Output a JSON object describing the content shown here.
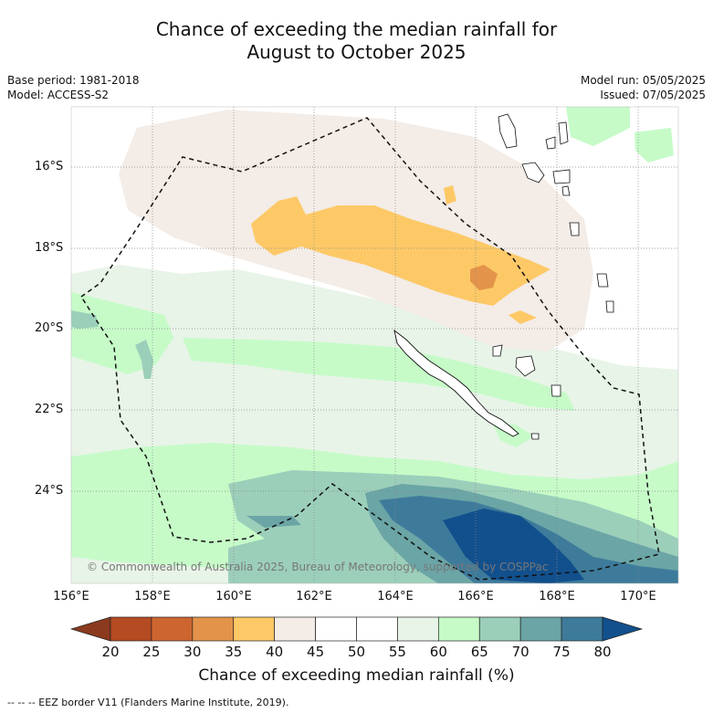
{
  "title_line1": "Chance of exceeding the median rainfall for",
  "title_line2": "August to October 2025",
  "meta_left": {
    "base_period": "Base period: 1981-2018",
    "model": "Model: ACCESS-S2"
  },
  "meta_right": {
    "model_run": "Model run: 05/05/2025",
    "issued": "Issued: 07/05/2025"
  },
  "lat_labels": [
    "16°S",
    "18°S",
    "20°S",
    "22°S",
    "24°S"
  ],
  "lon_labels": [
    "156°E",
    "158°E",
    "160°E",
    "162°E",
    "164°E",
    "166°E",
    "168°E",
    "170°E"
  ],
  "copyright": "© Commonwealth of Australia 2025, Bureau of Meteorology, supported by COSPPac",
  "colorbar": {
    "ticks": [
      "20",
      "25",
      "30",
      "35",
      "40",
      "45",
      "50",
      "55",
      "60",
      "65",
      "70",
      "75",
      "80"
    ],
    "colors": [
      "#8b3a1e",
      "#b44b22",
      "#cd6530",
      "#e3944a",
      "#fdc967",
      "#f3ece7",
      "#ffffff",
      "#ffffff",
      "#e8f4e8",
      "#c6fbc8",
      "#9ccfba",
      "#6ba5a6",
      "#3e7b9b",
      "#12508d"
    ],
    "title": "Chance of exceeding median rainfall (%)"
  },
  "footnote": "--  --  -- EEZ border V11 (Flanders Marine Institute, 2019)."
}
